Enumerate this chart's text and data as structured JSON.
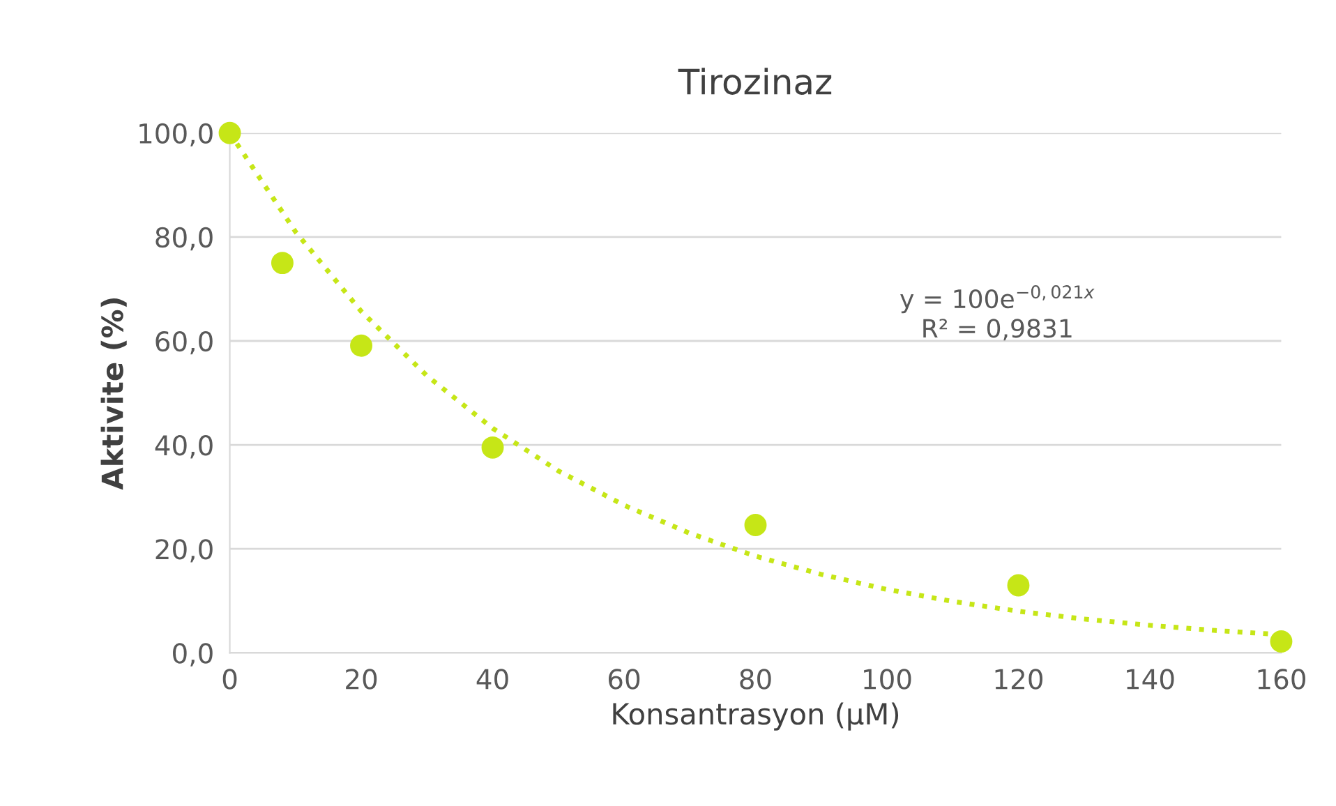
{
  "chart_data": {
    "type": "scatter",
    "title": "Tirozinaz",
    "xlabel": "Konsantrasyon (µM)",
    "ylabel": "Aktivite (%)",
    "series": [
      {
        "color": "#c6e617",
        "marker": "circle",
        "x": [
          0,
          8,
          20,
          40,
          80,
          120,
          160
        ],
        "values": [
          100,
          75,
          59.1,
          39.5,
          24.6,
          13,
          2.2
        ]
      },
      {
        "type": "line",
        "color": "#c6e617",
        "line_style": "dotted",
        "x": [
          0,
          10,
          20,
          30,
          40,
          50,
          60,
          70,
          80,
          90,
          100,
          110,
          120,
          130,
          140,
          150,
          160
        ],
        "values": [
          100,
          81,
          65.7,
          53.3,
          43.2,
          35,
          28.4,
          23,
          18.6,
          15.1,
          12.2,
          9.9,
          8,
          6.5,
          5.3,
          4.3,
          3.5
        ]
      }
    ],
    "xlim": [
      0,
      160
    ],
    "xticks": [
      0,
      20,
      40,
      60,
      80,
      100,
      120,
      140,
      160
    ],
    "ylim": [
      0,
      100
    ],
    "yticks": [
      {
        "value": 0,
        "label": "0,0"
      },
      {
        "value": 20,
        "label": "20,0"
      },
      {
        "value": 40,
        "label": "40,0"
      },
      {
        "value": 60,
        "label": "60,0"
      },
      {
        "value": 80,
        "label": "80,0"
      },
      {
        "value": 100,
        "label": "100,0"
      }
    ],
    "grid": "y",
    "annotations": [
      "y = 100e$^{−0,021x}$",
      "R² = 0,9831"
    ]
  }
}
